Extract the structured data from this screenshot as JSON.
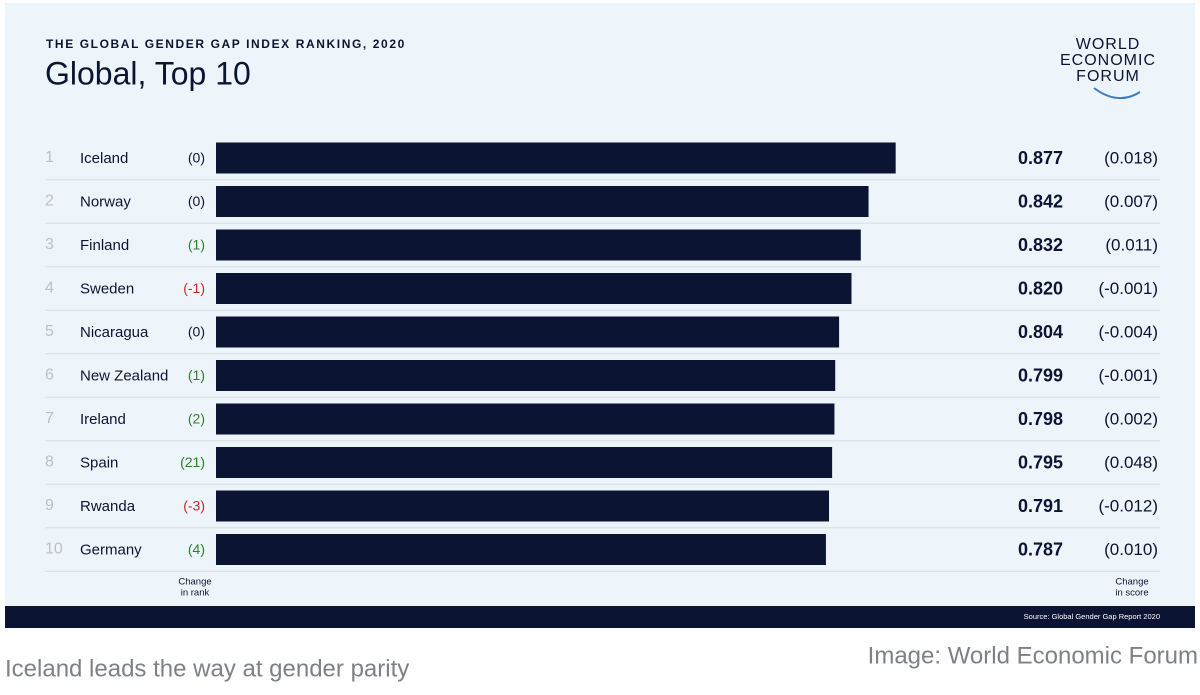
{
  "chart_data": {
    "type": "bar",
    "subtitle": "THE GLOBAL GENDER GAP INDEX RANKING, 2020",
    "title": "Global, Top 10",
    "logo": [
      "WORLD",
      "ECONOMIC",
      "FORUM"
    ],
    "ranks": [
      1,
      2,
      3,
      4,
      5,
      6,
      7,
      8,
      9,
      10
    ],
    "categories": [
      "Iceland",
      "Norway",
      "Finland",
      "Sweden",
      "Nicaragua",
      "New Zealand",
      "Ireland",
      "Spain",
      "Rwanda",
      "Germany"
    ],
    "rank_changes": [
      0,
      0,
      1,
      -1,
      0,
      1,
      2,
      21,
      -3,
      4
    ],
    "rank_change_labels": [
      "(0)",
      "(0)",
      "(1)",
      "(-1)",
      "(0)",
      "(1)",
      "(2)",
      "(21)",
      "(-3)",
      "(4)"
    ],
    "values": [
      0.877,
      0.842,
      0.832,
      0.82,
      0.804,
      0.799,
      0.798,
      0.795,
      0.791,
      0.787
    ],
    "value_labels": [
      "0.877",
      "0.842",
      "0.832",
      "0.820",
      "0.804",
      "0.799",
      "0.798",
      "0.795",
      "0.791",
      "0.787"
    ],
    "score_changes": [
      "(0.018)",
      "(0.007)",
      "(0.011)",
      "(-0.001)",
      "(-0.004)",
      "(-0.001)",
      "(0.002)",
      "(0.048)",
      "(-0.012)",
      "(0.010)"
    ],
    "color": "#0b1533",
    "rank_change_header": [
      "Change",
      "in rank"
    ],
    "score_change_header": [
      "Change",
      "in score"
    ],
    "source": "Source: Global Gender Gap Report 2020",
    "caption": "Iceland leads the way at gender parity",
    "credit": "Image: World Economic Forum"
  }
}
